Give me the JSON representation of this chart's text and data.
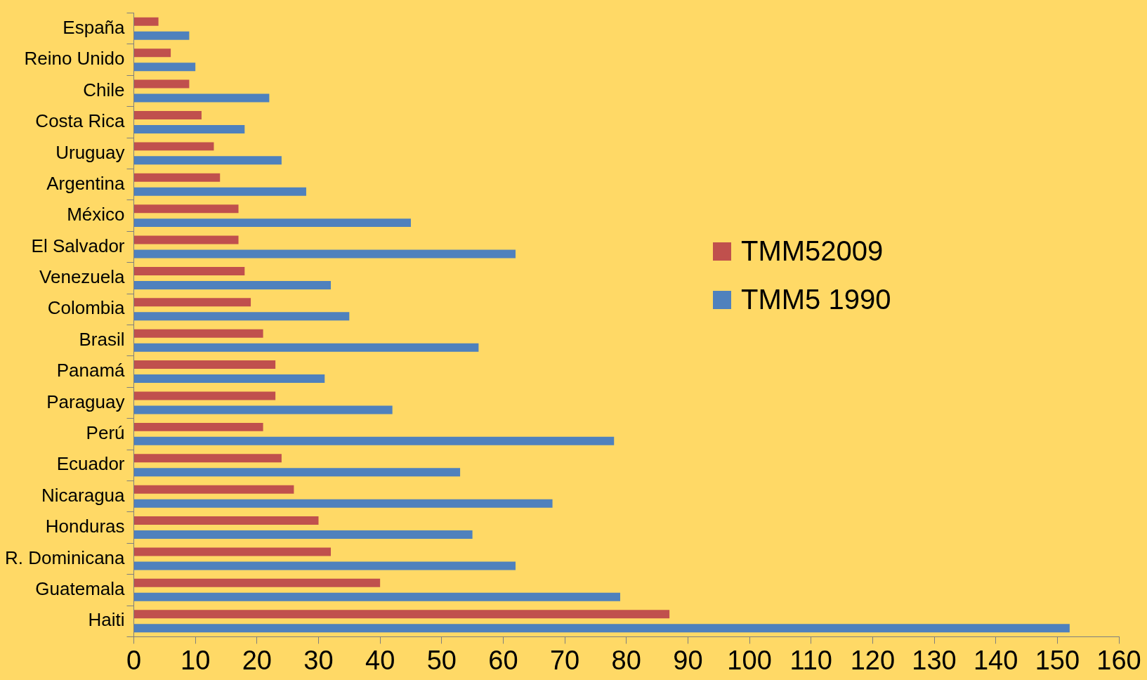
{
  "chart_data": {
    "type": "bar",
    "orientation": "horizontal",
    "categories": [
      "España",
      "Reino Unido",
      "Chile",
      "Costa Rica",
      "Uruguay",
      "Argentina",
      "México",
      "El Salvador",
      "Venezuela",
      "Colombia",
      "Brasil",
      "Panamá",
      "Paraguay",
      "Perú",
      "Ecuador",
      "Nicaragua",
      "Honduras",
      "R. Dominicana",
      "Guatemala",
      "Haiti"
    ],
    "series": [
      {
        "name": "TMM52009",
        "color": "#c0504d",
        "values": [
          4,
          6,
          9,
          11,
          13,
          14,
          17,
          17,
          18,
          19,
          21,
          23,
          23,
          21,
          24,
          26,
          30,
          32,
          40,
          87
        ]
      },
      {
        "name": "TMM5 1990",
        "color": "#4f81bd",
        "values": [
          9,
          10,
          22,
          18,
          24,
          28,
          45,
          62,
          32,
          35,
          56,
          31,
          42,
          78,
          53,
          68,
          55,
          62,
          79,
          152
        ]
      }
    ],
    "xlim": [
      0,
      160
    ],
    "xticks": [
      0,
      10,
      20,
      30,
      40,
      50,
      60,
      70,
      80,
      90,
      100,
      110,
      120,
      130,
      140,
      150,
      160
    ],
    "grid": false,
    "legend": "right"
  }
}
